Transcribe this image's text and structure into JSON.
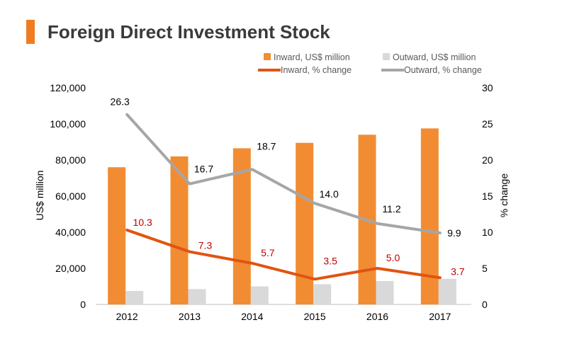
{
  "title": "Foreign Direct Investment Stock",
  "colors": {
    "accent": "#f07c22",
    "inward_bar": "#f28c33",
    "outward_bar": "#d9d9d9",
    "inward_line": "#e05412",
    "outward_line": "#a6a6a6",
    "inward_label": "#c00000",
    "outward_label": "#000000"
  },
  "legend": {
    "inward_bar": "Inward, US$ million",
    "outward_bar": "Outward, US$ million",
    "inward_line": "Inward, % change",
    "outward_line": "Outward, % change"
  },
  "chart_data": {
    "type": "bar",
    "title": "Foreign Direct Investment Stock",
    "categories": [
      "2012",
      "2013",
      "2014",
      "2015",
      "2016",
      "2017"
    ],
    "ylabel": "US$ million",
    "y2label": "% change",
    "ylim": [
      0,
      120000
    ],
    "y2lim": [
      0,
      30
    ],
    "yticks": [
      "0",
      "20,000",
      "40,000",
      "60,000",
      "80,000",
      "100,000",
      "120,000"
    ],
    "y2ticks": [
      "0",
      "5",
      "10",
      "15",
      "20",
      "25",
      "30"
    ],
    "legend_position": "top-right",
    "grid": false,
    "series": [
      {
        "name": "Inward, US$ million",
        "kind": "bar",
        "axis": "left",
        "values": [
          76000,
          82000,
          86500,
          89500,
          94000,
          97500
        ]
      },
      {
        "name": "Outward, US$ million",
        "kind": "bar",
        "axis": "left",
        "values": [
          7500,
          8500,
          10000,
          11200,
          13000,
          14200
        ]
      },
      {
        "name": "Inward, % change",
        "kind": "line",
        "axis": "right",
        "values": [
          10.3,
          7.3,
          5.7,
          3.5,
          5.0,
          3.7
        ],
        "labels": [
          "10.3",
          "7.3",
          "5.7",
          "3.5",
          "5.0",
          "3.7"
        ]
      },
      {
        "name": "Outward, % change",
        "kind": "line",
        "axis": "right",
        "values": [
          26.3,
          16.7,
          18.7,
          14.0,
          11.2,
          9.9
        ],
        "labels": [
          "26.3",
          "16.7",
          "18.7",
          "14.0",
          "11.2",
          "9.9"
        ]
      }
    ]
  }
}
